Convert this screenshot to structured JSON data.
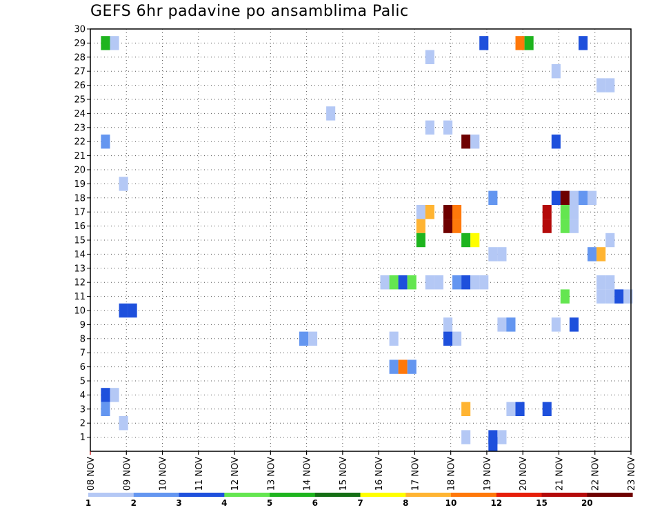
{
  "chart_data": {
    "type": "heatmap",
    "title": "GEFS 6hr padavine po ansamblima Palic",
    "x_ticks": [
      "08 NOV",
      "09 NOV",
      "10 NOV",
      "11 NOV",
      "12 NOV",
      "13 NOV",
      "14 NOV",
      "15 NOV",
      "16 NOV",
      "17 NOV",
      "18 NOV",
      "19 NOV",
      "20 NOV",
      "21 NOV",
      "22 NOV",
      "23 NOV"
    ],
    "y_ticks": [
      "1",
      "2",
      "3",
      "4",
      "5",
      "6",
      "7",
      "8",
      "9",
      "10",
      "11",
      "12",
      "13",
      "14",
      "15",
      "16",
      "17",
      "18",
      "19",
      "20",
      "21",
      "22",
      "23",
      "24",
      "25",
      "26",
      "27",
      "28",
      "29",
      "30"
    ],
    "xlim_days": [
      0,
      15
    ],
    "ylim": [
      0.5,
      30
    ],
    "grid": true,
    "colorbar": {
      "labels": [
        "1",
        "2",
        "3",
        "4",
        "5",
        "6",
        "7",
        "8",
        "10",
        "12",
        "15",
        "20"
      ],
      "colors": [
        "#b4c8f5",
        "#6496f0",
        "#1e50dc",
        "#64e650",
        "#1eb41e",
        "#146e14",
        "#ffff00",
        "#ffb432",
        "#ff780a",
        "#e61e0a",
        "#b40a0a",
        "#6e0000"
      ]
    },
    "cells": [
      {
        "d": 0.42,
        "m": 29,
        "c": 5
      },
      {
        "d": 0.67,
        "m": 29,
        "c": 1
      },
      {
        "d": 10.92,
        "m": 29,
        "c": 3
      },
      {
        "d": 11.92,
        "m": 29,
        "c": 9
      },
      {
        "d": 12.17,
        "m": 29,
        "c": 5
      },
      {
        "d": 13.67,
        "m": 29,
        "c": 3
      },
      {
        "d": 9.42,
        "m": 28,
        "c": 1
      },
      {
        "d": 12.92,
        "m": 27,
        "c": 1
      },
      {
        "d": 14.17,
        "m": 26,
        "c": 1
      },
      {
        "d": 14.42,
        "m": 26,
        "c": 1
      },
      {
        "d": 6.67,
        "m": 24,
        "c": 1
      },
      {
        "d": 9.42,
        "m": 23,
        "c": 1
      },
      {
        "d": 9.92,
        "m": 23,
        "c": 1
      },
      {
        "d": 0.42,
        "m": 22,
        "c": 2
      },
      {
        "d": 10.42,
        "m": 22,
        "c": 12
      },
      {
        "d": 10.67,
        "m": 22,
        "c": 1
      },
      {
        "d": 12.92,
        "m": 22,
        "c": 3
      },
      {
        "d": 0.92,
        "m": 19,
        "c": 1
      },
      {
        "d": 11.17,
        "m": 18,
        "c": 2
      },
      {
        "d": 12.92,
        "m": 18,
        "c": 3
      },
      {
        "d": 13.17,
        "m": 18,
        "c": 12
      },
      {
        "d": 13.42,
        "m": 18,
        "c": 1
      },
      {
        "d": 13.67,
        "m": 18,
        "c": 2
      },
      {
        "d": 13.92,
        "m": 18,
        "c": 1
      },
      {
        "d": 9.17,
        "m": 17,
        "c": 1
      },
      {
        "d": 9.42,
        "m": 17,
        "c": 8
      },
      {
        "d": 9.92,
        "m": 17,
        "c": 12
      },
      {
        "d": 10.17,
        "m": 17,
        "c": 9
      },
      {
        "d": 12.67,
        "m": 17,
        "c": 11
      },
      {
        "d": 13.17,
        "m": 17,
        "c": 4
      },
      {
        "d": 13.42,
        "m": 17,
        "c": 1
      },
      {
        "d": 9.17,
        "m": 16,
        "c": 8
      },
      {
        "d": 9.92,
        "m": 16,
        "c": 12
      },
      {
        "d": 10.17,
        "m": 16,
        "c": 9
      },
      {
        "d": 12.67,
        "m": 16,
        "c": 11
      },
      {
        "d": 13.17,
        "m": 16,
        "c": 4
      },
      {
        "d": 13.42,
        "m": 16,
        "c": 1
      },
      {
        "d": 9.17,
        "m": 15,
        "c": 5
      },
      {
        "d": 10.42,
        "m": 15,
        "c": 5
      },
      {
        "d": 10.67,
        "m": 15,
        "c": 7
      },
      {
        "d": 14.42,
        "m": 15,
        "c": 1
      },
      {
        "d": 11.17,
        "m": 14,
        "c": 1
      },
      {
        "d": 11.42,
        "m": 14,
        "c": 1
      },
      {
        "d": 13.92,
        "m": 14,
        "c": 2
      },
      {
        "d": 14.17,
        "m": 14,
        "c": 8
      },
      {
        "d": 8.17,
        "m": 12,
        "c": 1
      },
      {
        "d": 8.42,
        "m": 12,
        "c": 4
      },
      {
        "d": 8.67,
        "m": 12,
        "c": 3
      },
      {
        "d": 8.92,
        "m": 12,
        "c": 4
      },
      {
        "d": 9.42,
        "m": 12,
        "c": 1
      },
      {
        "d": 9.67,
        "m": 12,
        "c": 1
      },
      {
        "d": 10.17,
        "m": 12,
        "c": 2
      },
      {
        "d": 10.42,
        "m": 12,
        "c": 3
      },
      {
        "d": 10.67,
        "m": 12,
        "c": 1
      },
      {
        "d": 10.92,
        "m": 12,
        "c": 1
      },
      {
        "d": 14.17,
        "m": 12,
        "c": 1
      },
      {
        "d": 14.42,
        "m": 12,
        "c": 1
      },
      {
        "d": 13.17,
        "m": 11,
        "c": 4
      },
      {
        "d": 14.17,
        "m": 11,
        "c": 1
      },
      {
        "d": 14.42,
        "m": 11,
        "c": 1
      },
      {
        "d": 14.67,
        "m": 11,
        "c": 3
      },
      {
        "d": 14.92,
        "m": 11,
        "c": 1
      },
      {
        "d": 0.92,
        "m": 10,
        "c": 3
      },
      {
        "d": 1.17,
        "m": 10,
        "c": 3
      },
      {
        "d": 9.92,
        "m": 9,
        "c": 1
      },
      {
        "d": 11.42,
        "m": 9,
        "c": 1
      },
      {
        "d": 11.67,
        "m": 9,
        "c": 2
      },
      {
        "d": 12.92,
        "m": 9,
        "c": 1
      },
      {
        "d": 13.42,
        "m": 9,
        "c": 3
      },
      {
        "d": 5.92,
        "m": 8,
        "c": 2
      },
      {
        "d": 6.17,
        "m": 8,
        "c": 1
      },
      {
        "d": 8.42,
        "m": 8,
        "c": 1
      },
      {
        "d": 9.92,
        "m": 8,
        "c": 3
      },
      {
        "d": 10.17,
        "m": 8,
        "c": 1
      },
      {
        "d": 8.42,
        "m": 6,
        "c": 2
      },
      {
        "d": 8.67,
        "m": 6,
        "c": 9
      },
      {
        "d": 8.92,
        "m": 6,
        "c": 2
      },
      {
        "d": 0.42,
        "m": 4,
        "c": 3
      },
      {
        "d": 0.67,
        "m": 4,
        "c": 1
      },
      {
        "d": 0.42,
        "m": 3,
        "c": 2
      },
      {
        "d": 10.42,
        "m": 3,
        "c": 8
      },
      {
        "d": 11.67,
        "m": 3,
        "c": 1
      },
      {
        "d": 11.92,
        "m": 3,
        "c": 3
      },
      {
        "d": 12.67,
        "m": 3,
        "c": 3
      },
      {
        "d": 0.92,
        "m": 2,
        "c": 1
      },
      {
        "d": 10.42,
        "m": 1,
        "c": 1
      },
      {
        "d": 11.17,
        "m": 1,
        "c": 3
      },
      {
        "d": 11.42,
        "m": 1,
        "c": 1
      },
      {
        "d": 11.17,
        "m": 0.5,
        "c": 3
      }
    ]
  }
}
